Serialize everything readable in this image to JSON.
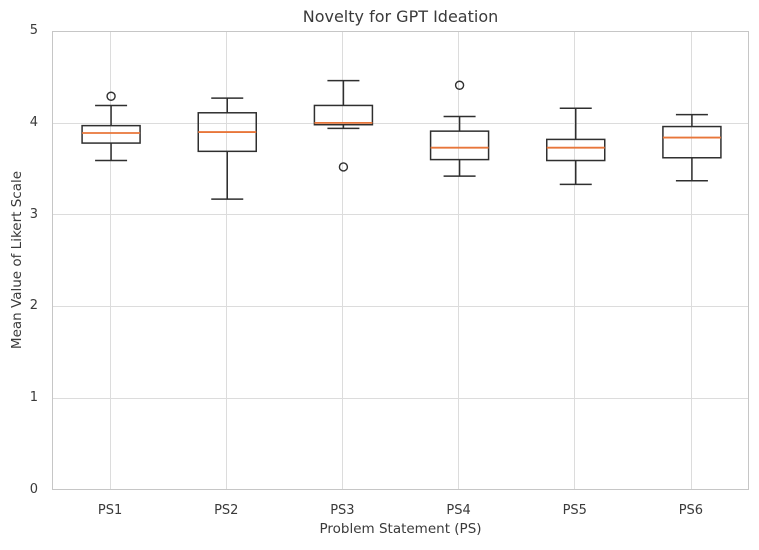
{
  "chart_data": {
    "type": "boxplot",
    "title": "Novelty for GPT Ideation",
    "xlabel": "Problem Statement (PS)",
    "ylabel": "Mean Value of Likert Scale",
    "categories": [
      "PS1",
      "PS2",
      "PS3",
      "PS4",
      "PS5",
      "PS6"
    ],
    "ylim": [
      0,
      5
    ],
    "yticks": [
      0,
      1,
      2,
      3,
      4,
      5
    ],
    "grid": "both",
    "legend": "none",
    "colors": {
      "box_edge": "#2f2f2f",
      "median": "#e8763a",
      "grid": "#dcdcdc",
      "spine": "#c6c6c6",
      "text": "#3a3a3a",
      "background": "#ffffff"
    },
    "boxes": [
      {
        "label": "PS1",
        "whislo": 3.6,
        "q1": 3.79,
        "med": 3.9,
        "q3": 3.98,
        "whishi": 4.2,
        "fliers": [
          4.3
        ]
      },
      {
        "label": "PS2",
        "whislo": 3.18,
        "q1": 3.7,
        "med": 3.91,
        "q3": 4.12,
        "whishi": 4.28,
        "fliers": []
      },
      {
        "label": "PS3",
        "whislo": 3.95,
        "q1": 3.99,
        "med": 4.01,
        "q3": 4.2,
        "whishi": 4.47,
        "fliers": [
          3.53
        ]
      },
      {
        "label": "PS4",
        "whislo": 3.43,
        "q1": 3.61,
        "med": 3.74,
        "q3": 3.92,
        "whishi": 4.08,
        "fliers": [
          4.42
        ]
      },
      {
        "label": "PS5",
        "whislo": 3.34,
        "q1": 3.6,
        "med": 3.74,
        "q3": 3.83,
        "whishi": 4.17,
        "fliers": []
      },
      {
        "label": "PS6",
        "whislo": 3.38,
        "q1": 3.63,
        "med": 3.85,
        "q3": 3.97,
        "whishi": 4.1,
        "fliers": []
      }
    ]
  }
}
